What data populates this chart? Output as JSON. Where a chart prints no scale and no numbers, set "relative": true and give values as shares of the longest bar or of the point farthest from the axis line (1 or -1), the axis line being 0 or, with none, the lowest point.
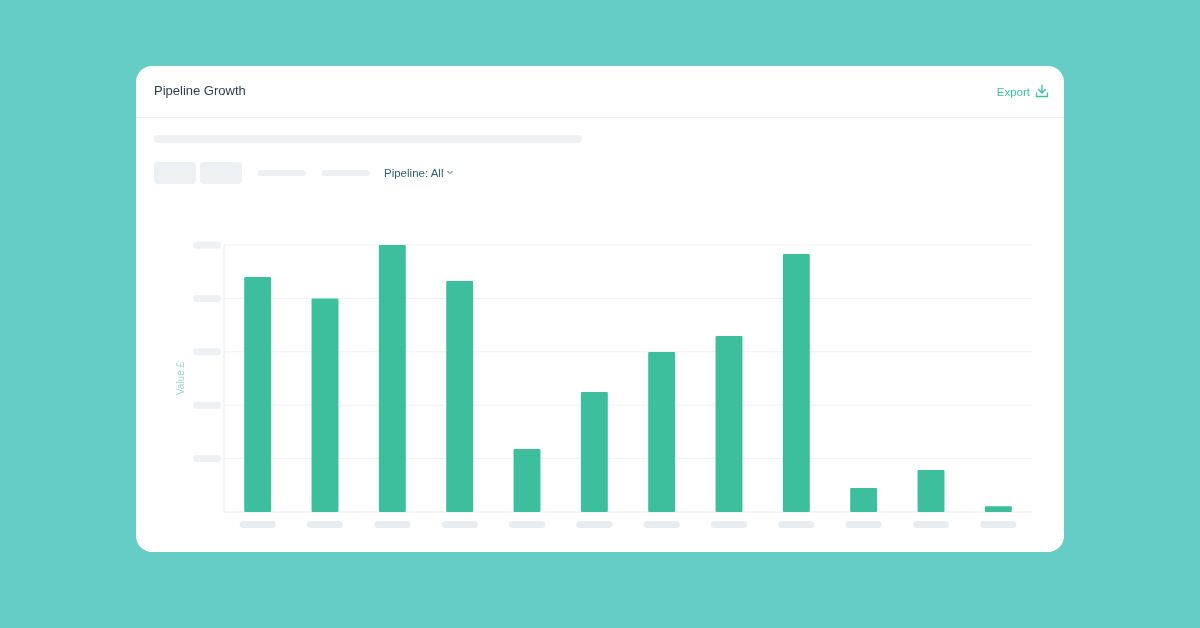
{
  "chart_data": {
    "type": "bar",
    "title": "Pipeline Growth",
    "ylabel": "Value £",
    "annotations": [
      "Export",
      "Pipeline: All"
    ],
    "categories": [
      null,
      null,
      null,
      null,
      null,
      null,
      null,
      null,
      null,
      null,
      null,
      null
    ],
    "values": [
      0.88,
      0.8,
      1,
      0.865,
      0.236,
      0.449,
      0.599,
      0.659,
      0.966,
      0.09,
      0.157,
      0.022
    ],
    "color": "#3dbf9e",
    "relative": true,
    "grid": "y"
  }
}
